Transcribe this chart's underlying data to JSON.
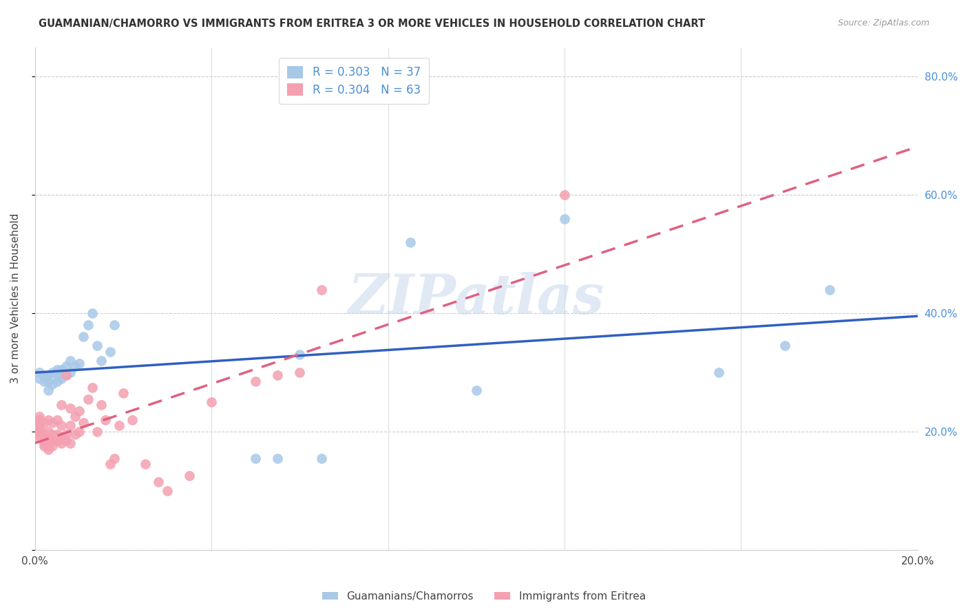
{
  "title": "GUAMANIAN/CHAMORRO VS IMMIGRANTS FROM ERITREA 3 OR MORE VEHICLES IN HOUSEHOLD CORRELATION CHART",
  "source": "Source: ZipAtlas.com",
  "ylabel": "3 or more Vehicles in Household",
  "xmin": 0.0,
  "xmax": 0.2,
  "ymin": 0.0,
  "ymax": 0.85,
  "blue_R": 0.303,
  "blue_N": 37,
  "pink_R": 0.304,
  "pink_N": 63,
  "blue_color": "#a8c8e8",
  "pink_color": "#f4a0b0",
  "blue_line_color": "#3060c0",
  "pink_line_color": "#e06080",
  "legend_label_blue": "Guamanians/Chamorros",
  "legend_label_pink": "Immigrants from Eritrea",
  "watermark": "ZIPatlas",
  "blue_scatter_x": [
    0.001,
    0.001,
    0.002,
    0.002,
    0.003,
    0.003,
    0.003,
    0.004,
    0.004,
    0.005,
    0.005,
    0.005,
    0.006,
    0.006,
    0.007,
    0.007,
    0.008,
    0.008,
    0.009,
    0.01,
    0.011,
    0.012,
    0.013,
    0.014,
    0.015,
    0.017,
    0.018,
    0.05,
    0.055,
    0.06,
    0.065,
    0.085,
    0.1,
    0.12,
    0.155,
    0.17,
    0.18
  ],
  "blue_scatter_y": [
    0.29,
    0.3,
    0.285,
    0.295,
    0.27,
    0.285,
    0.295,
    0.28,
    0.3,
    0.285,
    0.295,
    0.305,
    0.29,
    0.305,
    0.295,
    0.31,
    0.3,
    0.32,
    0.31,
    0.315,
    0.36,
    0.38,
    0.4,
    0.345,
    0.32,
    0.335,
    0.38,
    0.155,
    0.155,
    0.33,
    0.155,
    0.52,
    0.27,
    0.56,
    0.3,
    0.345,
    0.44
  ],
  "pink_scatter_x": [
    0.001,
    0.001,
    0.001,
    0.001,
    0.001,
    0.001,
    0.001,
    0.001,
    0.002,
    0.002,
    0.002,
    0.002,
    0.002,
    0.002,
    0.003,
    0.003,
    0.003,
    0.003,
    0.003,
    0.003,
    0.003,
    0.004,
    0.004,
    0.004,
    0.004,
    0.005,
    0.005,
    0.005,
    0.006,
    0.006,
    0.006,
    0.006,
    0.007,
    0.007,
    0.007,
    0.008,
    0.008,
    0.008,
    0.009,
    0.009,
    0.01,
    0.01,
    0.011,
    0.012,
    0.013,
    0.014,
    0.015,
    0.016,
    0.017,
    0.018,
    0.019,
    0.02,
    0.022,
    0.025,
    0.028,
    0.03,
    0.035,
    0.04,
    0.05,
    0.055,
    0.06,
    0.065,
    0.12
  ],
  "pink_scatter_y": [
    0.19,
    0.195,
    0.2,
    0.205,
    0.21,
    0.215,
    0.22,
    0.225,
    0.175,
    0.18,
    0.185,
    0.19,
    0.195,
    0.215,
    0.17,
    0.175,
    0.18,
    0.185,
    0.19,
    0.2,
    0.22,
    0.175,
    0.185,
    0.195,
    0.215,
    0.185,
    0.195,
    0.22,
    0.18,
    0.19,
    0.21,
    0.245,
    0.185,
    0.195,
    0.295,
    0.18,
    0.21,
    0.24,
    0.195,
    0.225,
    0.2,
    0.235,
    0.215,
    0.255,
    0.275,
    0.2,
    0.245,
    0.22,
    0.145,
    0.155,
    0.21,
    0.265,
    0.22,
    0.145,
    0.115,
    0.1,
    0.125,
    0.25,
    0.285,
    0.295,
    0.3,
    0.44,
    0.6
  ],
  "ytick_values": [
    0.0,
    0.2,
    0.4,
    0.6,
    0.8
  ],
  "ytick_labels_left": [
    "",
    "",
    "",
    "",
    ""
  ],
  "ytick_labels_right": [
    "",
    "20.0%",
    "40.0%",
    "60.0%",
    "80.0%"
  ],
  "xtick_values": [
    0.0,
    0.04,
    0.08,
    0.12,
    0.16,
    0.2
  ],
  "xtick_labels": [
    "0.0%",
    "",
    "",
    "",
    "",
    "20.0%"
  ]
}
